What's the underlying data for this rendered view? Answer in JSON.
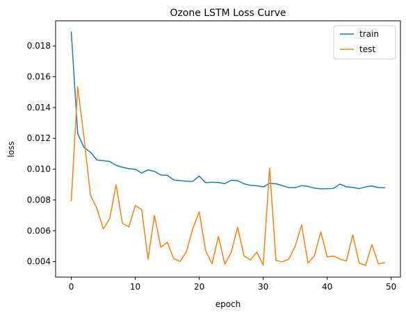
{
  "chart_data": {
    "type": "line",
    "title": "Ozone LSTM Loss Curve",
    "xlabel": "epoch",
    "ylabel": "loss",
    "xlim": [
      -2.45,
      51.45
    ],
    "ylim": [
      0.00299,
      0.01963
    ],
    "xticks": [
      0,
      10,
      20,
      30,
      40,
      50
    ],
    "yticks": [
      0.004,
      0.006,
      0.008,
      0.01,
      0.012,
      0.014,
      0.016,
      0.018
    ],
    "xtick_labels": [
      "0",
      "10",
      "20",
      "30",
      "40",
      "50"
    ],
    "ytick_labels": [
      "0.004",
      "0.006",
      "0.008",
      "0.010",
      "0.012",
      "0.014",
      "0.016",
      "0.018"
    ],
    "grid": false,
    "legend_position": "upper right",
    "x": [
      0,
      1,
      2,
      3,
      4,
      5,
      6,
      7,
      8,
      9,
      10,
      11,
      12,
      13,
      14,
      15,
      16,
      17,
      18,
      19,
      20,
      21,
      22,
      23,
      24,
      25,
      26,
      27,
      28,
      29,
      30,
      31,
      32,
      33,
      34,
      35,
      36,
      37,
      38,
      39,
      40,
      41,
      42,
      43,
      44,
      45,
      46,
      47,
      48,
      49
    ],
    "series": [
      {
        "name": "train",
        "color": "#1f77b4",
        "values": [
          0.0189,
          0.0123,
          0.0114,
          0.0111,
          0.0106,
          0.01055,
          0.0105,
          0.01025,
          0.01012,
          0.01003,
          0.00999,
          0.00975,
          0.00995,
          0.00985,
          0.00962,
          0.0096,
          0.0093,
          0.00925,
          0.00922,
          0.00921,
          0.00955,
          0.00912,
          0.00915,
          0.00913,
          0.00906,
          0.00928,
          0.00925,
          0.00905,
          0.00895,
          0.00892,
          0.00885,
          0.00908,
          0.00905,
          0.00893,
          0.0088,
          0.0088,
          0.00893,
          0.00888,
          0.00877,
          0.00872,
          0.00873,
          0.00875,
          0.00903,
          0.00885,
          0.00882,
          0.00873,
          0.00885,
          0.00891,
          0.0088,
          0.00879
        ]
      },
      {
        "name": "test",
        "color": "#ff7f0e",
        "values": [
          0.00795,
          0.01535,
          0.012,
          0.0083,
          0.00745,
          0.00612,
          0.00678,
          0.00898,
          0.00648,
          0.00625,
          0.00763,
          0.00738,
          0.00415,
          0.007,
          0.00493,
          0.00525,
          0.0042,
          0.004,
          0.00465,
          0.00615,
          0.00723,
          0.0047,
          0.00386,
          0.00563,
          0.00383,
          0.0046,
          0.00623,
          0.00437,
          0.0041,
          0.00461,
          0.00377,
          0.01007,
          0.00407,
          0.00398,
          0.00416,
          0.005,
          0.00638,
          0.0039,
          0.00437,
          0.00593,
          0.0043,
          0.00436,
          0.00416,
          0.00403,
          0.00573,
          0.0039,
          0.00375,
          0.0051,
          0.00385,
          0.00393
        ]
      }
    ]
  }
}
